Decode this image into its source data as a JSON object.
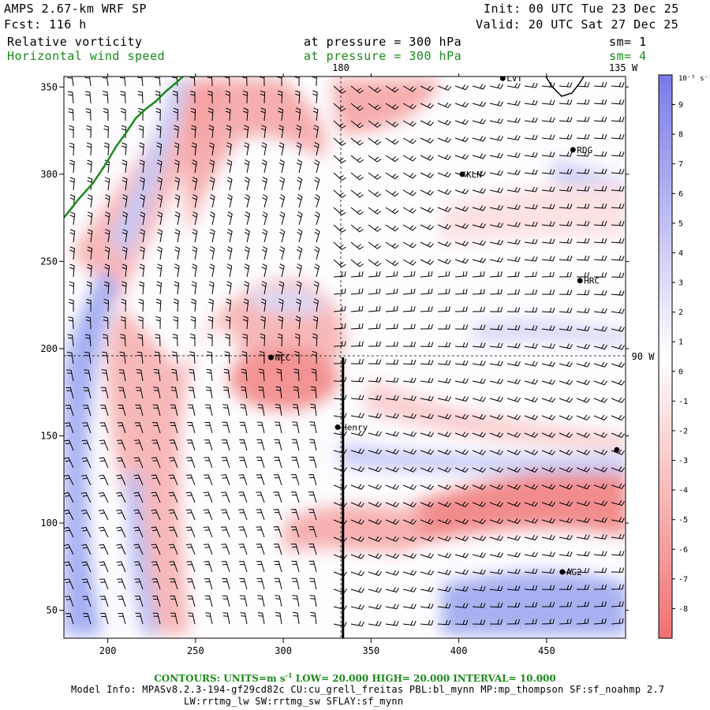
{
  "header": {
    "model": "AMPS 2.67-km WRF SP",
    "forecast": "Fcst:  116 h",
    "init": "Init: 00 UTC Tue 23 Dec 25",
    "valid": "Valid: 20 UTC Sat 27 Dec 25",
    "field1_name": "Relative vorticity",
    "field1_level": "at pressure =  300 hPa",
    "field1_smooth": "sm= 1",
    "field2_name": "Horizontal wind speed",
    "field2_level": "at pressure =  300 hPa",
    "field2_smooth": "sm= 4"
  },
  "colors": {
    "green": "#1a8a1a",
    "strong_red": "#f07070",
    "light_red": "#fbd6d6",
    "white": "#ffffff",
    "light_blue": "#d4d8f8",
    "strong_blue": "#7a7ae8"
  },
  "chart_data": {
    "type": "heatmap",
    "x_ticks": [
      200,
      250,
      300,
      350,
      400,
      450
    ],
    "y_ticks": [
      50,
      100,
      150,
      200,
      250,
      300,
      350
    ],
    "xlim": [
      175,
      495
    ],
    "ylim": [
      34,
      356
    ],
    "meridian_labels": [
      "180",
      "135 W",
      "90 W"
    ],
    "colorbar": {
      "unit_label": "10⁻⁵ s⁻¹",
      "levels": [
        9,
        8,
        7,
        6,
        5,
        4,
        3,
        2,
        1,
        0,
        -1,
        -2,
        -3,
        -4,
        -5,
        -6,
        -7,
        -8
      ],
      "range": [
        -9,
        10
      ]
    },
    "stations": [
      {
        "name": "LVT",
        "x": 425,
        "y": 355
      },
      {
        "name": "RDG",
        "x": 465,
        "y": 314
      },
      {
        "name": "KLN",
        "x": 402,
        "y": 300
      },
      {
        "name": "HRC",
        "x": 469,
        "y": 239
      },
      {
        "name": "NCC",
        "x": 293,
        "y": 195
      },
      {
        "name": "Henry",
        "x": 331,
        "y": 155
      },
      {
        "name": "",
        "x": 490,
        "y": 142
      },
      {
        "name": "AG2",
        "x": 459,
        "y": 72
      }
    ],
    "cross_section": {
      "x": 334,
      "y_start": 34,
      "y_end": 195
    }
  },
  "footer": {
    "contours_label": "CONTOURS:  UNITS=m s",
    "contours_unit_exp": "-1",
    "contours_rest": "  LOW=  20.000      HIGH=  20.000      INTERVAL=   10.000",
    "model_info": "Model Info: MPASv8.2.3-194-gf29cd82c CU:cu_grell_freitas PBL:bl_mynn MP:mp_thompson SF:sf_noahmp 2.7",
    "model_info2": "LW:rrtmg_lw SW:rrtmg_sw SFLAY:sf_mynn"
  }
}
